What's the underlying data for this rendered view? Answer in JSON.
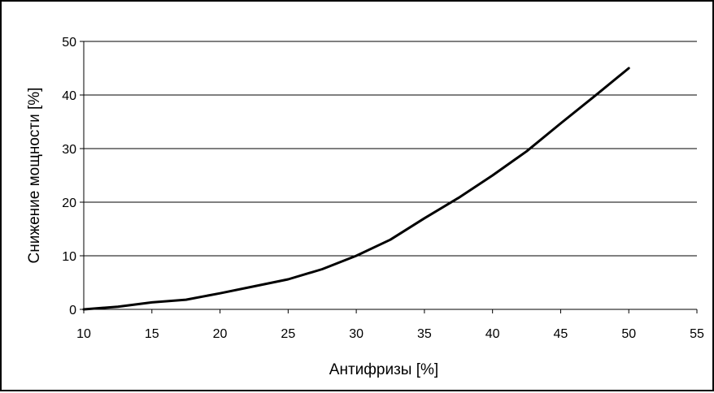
{
  "chart_data": {
    "type": "line",
    "title": "",
    "xlabel": "Антифризы [%]",
    "ylabel": "Снижение мощности [%]",
    "xlim": [
      10,
      55
    ],
    "ylim": [
      0,
      50
    ],
    "xticks": [
      10,
      15,
      20,
      25,
      30,
      35,
      40,
      45,
      50,
      55
    ],
    "yticks": [
      0,
      10,
      20,
      30,
      40,
      50
    ],
    "grid": "horizontal",
    "legend": "none",
    "series": [
      {
        "color": "#000000",
        "x": [
          10,
          12.5,
          15,
          17.5,
          20,
          22.5,
          25,
          27.5,
          30,
          32.5,
          35,
          37.5,
          40,
          42.5,
          45,
          47.5,
          50
        ],
        "y": [
          0,
          0.5,
          1.3,
          1.8,
          3.0,
          4.3,
          5.6,
          7.5,
          10.0,
          13.0,
          17.0,
          20.8,
          25.0,
          29.5,
          34.7,
          39.8,
          45.0
        ]
      }
    ]
  }
}
